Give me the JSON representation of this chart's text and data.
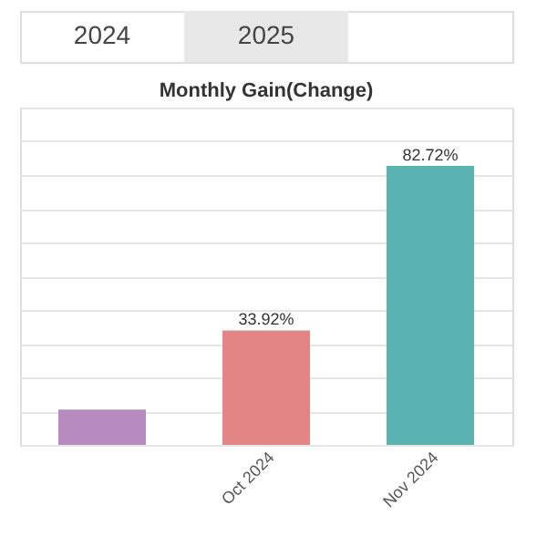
{
  "chart_data": {
    "type": "bar",
    "title": "Monthly Gain(Change)",
    "annotations": [
      "2024",
      "2025"
    ],
    "categories": [
      null,
      "Oct 2024",
      "Nov 2024"
    ],
    "values": [
      10.5,
      33.92,
      82.72
    ],
    "colors": [
      "#b88bc0",
      "#e38585",
      "#5bb3b1"
    ],
    "value_labels": [
      null,
      "33.92%",
      "82.72%"
    ],
    "ylim": [
      0,
      100
    ],
    "grid": "y",
    "tick_labels": "x",
    "legend": false
  }
}
